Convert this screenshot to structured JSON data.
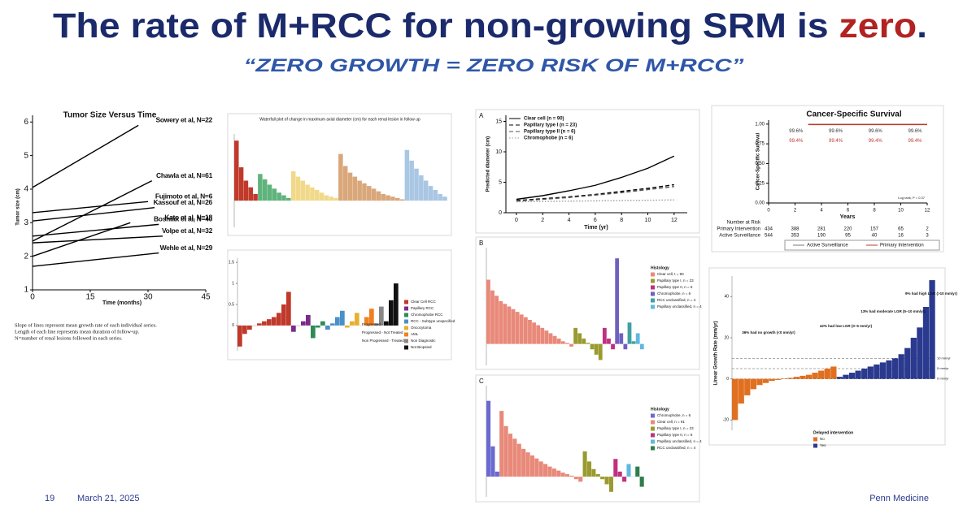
{
  "header": {
    "title": "The rate of M+RCC for non-growing SRM is ",
    "title_emphasis": "zero",
    "title_end": ".",
    "subtitle": "“ZERO GROWTH = ZERO RISK OF M+RCC”"
  },
  "footer": {
    "page": "19",
    "date": "March 21, 2025",
    "organization": "Penn Medicine"
  },
  "chart_data": [
    {
      "type": "line",
      "title": "Tumor Size Versus Time",
      "xlabel": "Time (months)",
      "ylabel": "Tumor size (cm)",
      "xlim": [
        0,
        45
      ],
      "xticks": [
        0,
        15,
        30,
        45
      ],
      "ylim": [
        1,
        6.2
      ],
      "yticks": [
        1,
        2,
        3,
        4,
        5,
        6
      ],
      "color": "#000000",
      "label_ends": true,
      "series": [
        {
          "name": "Sowery et al, N=22",
          "x": [
            0,
            27.5
          ],
          "values": [
            4.05,
            5.9
          ]
        },
        {
          "name": "Chawla et al, N=61",
          "x": [
            0,
            31
          ],
          "values": [
            2.45,
            4.25
          ]
        },
        {
          "name": "Fujimoto et al, N=6",
          "x": [
            0,
            30
          ],
          "values": [
            3.3,
            3.63
          ]
        },
        {
          "name": "Kassouf et al, N=26",
          "x": [
            0,
            31.7
          ],
          "values": [
            3.05,
            3.45
          ]
        },
        {
          "name": "Kato et al, N=18",
          "x": [
            0,
            25.4
          ],
          "values": [
            2.0,
            3.0
          ]
        },
        {
          "name": "Bosniak et al, N=40",
          "x": [
            0,
            32.8
          ],
          "values": [
            2.6,
            2.95
          ]
        },
        {
          "name": "Volpe et al, N=32",
          "x": [
            0,
            33.8
          ],
          "values": [
            2.4,
            2.6
          ]
        },
        {
          "name": "Wehle et al, N=29",
          "x": [
            0,
            32.8
          ],
          "values": [
            1.7,
            2.1
          ]
        }
      ],
      "notes": [
        "Slope of lines represent mean growth rate of each individual series.",
        "Length of each line represents mean duration of follow-up.",
        "N=number of renal lesions followed in each series."
      ]
    },
    {
      "type": "line",
      "panel": "A",
      "xlabel": "Time (yr)",
      "ylabel": "Predicted diameter (cm)",
      "legend": "upper left",
      "xlim": [
        -0.8,
        13
      ],
      "xticks": [
        0,
        2,
        4,
        6,
        8,
        10,
        12
      ],
      "ylim": [
        0,
        16
      ],
      "yticks": [
        0,
        5,
        10,
        15
      ],
      "series": [
        {
          "name": "Clear cell (n = 90)",
          "color": "#000000",
          "dash": "solid",
          "x": [
            0,
            2,
            4,
            6,
            8,
            10,
            12
          ],
          "values": [
            2.2,
            2.8,
            3.6,
            4.5,
            5.8,
            7.3,
            9.3
          ]
        },
        {
          "name": "Papillary type I (n = 23)",
          "color": "#000000",
          "dash": "dashed",
          "x": [
            0,
            2,
            4,
            6,
            8,
            10,
            12
          ],
          "values": [
            2.0,
            2.3,
            2.6,
            3.0,
            3.5,
            4.0,
            4.6
          ]
        },
        {
          "name": "Papillary type II (n = 6)",
          "color": "#555555",
          "dash": "dashed",
          "x": [
            0,
            2,
            4,
            6,
            8,
            10,
            12
          ],
          "values": [
            1.9,
            2.2,
            2.5,
            2.9,
            3.3,
            3.8,
            4.3
          ]
        },
        {
          "name": "Chromophobe (n = 6)",
          "color": "#999999",
          "dash": "dotted",
          "x": [
            0,
            2,
            4,
            6,
            8,
            10,
            12
          ],
          "values": [
            1.8,
            1.85,
            1.9,
            1.95,
            2.0,
            2.05,
            2.1
          ]
        }
      ]
    },
    {
      "type": "line",
      "title": "Cancer-Specific Survival",
      "xlabel": "Years",
      "ylabel": "Cancer-Specific Survival",
      "legend": "lower center",
      "xlim": [
        0,
        12
      ],
      "xticks": [
        0,
        2,
        4,
        6,
        8,
        10,
        12
      ],
      "ylim": [
        0,
        1.05
      ],
      "yticks": [
        {
          "value": 0,
          "label": "0.00"
        },
        {
          "value": 0.25,
          "label": "0.25"
        },
        {
          "value": 0.5,
          "label": "0.50"
        },
        {
          "value": 0.75,
          "label": "0.75"
        },
        {
          "value": 1,
          "label": "1.00"
        }
      ],
      "annotation": "Log rank, P = 0.37",
      "series": [
        {
          "name": "Active Surveillance",
          "color": "#777777",
          "label_color": "#333333",
          "x": [
            3,
            6,
            9,
            12
          ],
          "values": [
            0.996,
            0.996,
            0.996,
            0.996
          ],
          "value_labels": [
            "99.6%",
            "99.6%",
            "99.6%",
            "99.6%"
          ]
        },
        {
          "name": "Primary Intervention",
          "color": "#c0392b",
          "label_color": "#c0392b",
          "x": [
            3,
            6,
            9,
            12
          ],
          "values": [
            0.994,
            0.994,
            0.994,
            0.994
          ],
          "value_labels": [
            "99.4%",
            "99.4%",
            "99.4%",
            "99.4%"
          ]
        }
      ],
      "risk_table": {
        "title": "Number at Risk",
        "rows": [
          {
            "name": "Primary Intervention",
            "values": [
              "434",
              "388",
              "281",
              "220",
              "157",
              "65",
              "2"
            ]
          },
          {
            "name": "Active Surveillance",
            "values": [
              "544",
              "353",
              "190",
              "95",
              "40",
              "16",
              "3"
            ]
          }
        ]
      }
    },
    {
      "type": "waterfall",
      "title": "Waterfall plot of change in maximum axial diameter (cm) for each renal lesion in follow up",
      "ylim": [
        -2,
        5
      ],
      "series": [
        {
          "color": "#c0392b",
          "values": [
            4.5,
            2.5,
            1.5,
            1.0,
            0.5
          ]
        },
        {
          "color": "#5fb37c",
          "values": [
            2.0,
            1.6,
            1.2,
            0.9,
            0.6,
            0.4,
            0.2
          ]
        },
        {
          "color": "#f1d98a",
          "values": [
            2.2,
            1.8,
            1.5,
            1.2,
            1.0,
            0.8,
            0.6,
            0.4,
            0.3,
            0.2
          ]
        },
        {
          "color": "#d9a77a",
          "values": [
            3.5,
            2.6,
            2.1,
            1.8,
            1.5,
            1.3,
            1.1,
            0.9,
            0.7,
            0.5,
            0.4,
            0.3,
            0.2,
            0.1
          ]
        },
        {
          "color": "#a9c6e3",
          "values": [
            3.8,
            3.0,
            2.4,
            1.9,
            1.5,
            1.1,
            0.8,
            0.5,
            0.3
          ]
        }
      ]
    },
    {
      "type": "waterfall",
      "ylim": [
        -0.6,
        1.6
      ],
      "yticks": [
        0,
        0.5,
        1.0,
        1.5
      ],
      "series": [
        {
          "name": "Clear Cell RCC",
          "color": "#c0392b",
          "values": [
            -0.5,
            -0.2,
            -0.1,
            0.0,
            0.05,
            0.1,
            0.15,
            0.2,
            0.3,
            0.5,
            0.8
          ]
        },
        {
          "name": "Papillary RCC",
          "color": "#7b2a8a",
          "values": [
            -0.15,
            0.0,
            0.1,
            0.25
          ]
        },
        {
          "name": "Chromophobe RCC",
          "color": "#2e8b57",
          "values": [
            -0.3,
            -0.05,
            0.1
          ]
        },
        {
          "name": "RCC - Subtype unspecified",
          "color": "#4a90c8",
          "values": [
            -0.1,
            0.05,
            0.2,
            0.35
          ]
        },
        {
          "name": "Oncocytoma",
          "color": "#e8b030",
          "values": [
            -0.05,
            0.1,
            0.3
          ]
        },
        {
          "name": "AML",
          "color": "#f08020",
          "values": [
            0.0,
            0.2,
            0.4
          ]
        },
        {
          "name": "Non Diagnostic",
          "color": "#888888",
          "values": [
            0.05,
            0.45
          ]
        },
        {
          "name": "Not Biopsied",
          "color": "#111111",
          "values": [
            0.1,
            0.6,
            1.0
          ]
        }
      ],
      "markers_legend": [
        "Progressed - Treated",
        "Progressed - Not Treated",
        "Non Progressed - Treated"
      ]
    },
    {
      "type": "waterfall",
      "panel": "B",
      "legend_title": "Histology",
      "ylim": [
        -0.4,
        1.8
      ],
      "series": [
        {
          "name": "Clear cell, t = 90",
          "color": "#e8897a",
          "values": [
            1.2,
            1.0,
            0.9,
            0.8,
            0.75,
            0.7,
            0.65,
            0.6,
            0.55,
            0.5,
            0.45,
            0.4,
            0.35,
            0.3,
            0.25,
            0.2,
            0.15,
            0.1,
            0.05,
            0.02,
            -0.05
          ]
        },
        {
          "name": "Papillary type I, n = 23",
          "color": "#9a9a30",
          "values": [
            0.3,
            0.2,
            0.1,
            0.02,
            -0.1,
            -0.2,
            -0.3
          ]
        },
        {
          "name": "Papillary type II, n = 6",
          "color": "#c03080",
          "values": [
            0.3,
            0.1,
            -0.1
          ]
        },
        {
          "name": "Chromophobe, n = 6",
          "color": "#7060c0",
          "values": [
            1.6,
            0.2,
            -0.1
          ]
        },
        {
          "name": "RCC unclassified, n = 4",
          "color": "#40a0a0",
          "values": [
            0.4,
            0.05
          ]
        },
        {
          "name": "Papillary unclassified, n = 4",
          "color": "#60b8e0",
          "values": [
            0.2,
            -0.1
          ]
        }
      ]
    },
    {
      "type": "waterfall",
      "panel": "C",
      "legend_title": "Histology",
      "ylim": [
        -0.4,
        1.8
      ],
      "series": [
        {
          "name": "Chromophobe, n = 6",
          "color": "#6a6ad0",
          "values": [
            1.5,
            0.6,
            0.1
          ]
        },
        {
          "name": "Clear cell, n = 91",
          "color": "#e8897a",
          "values": [
            1.3,
            1.0,
            0.85,
            0.75,
            0.65,
            0.55,
            0.48,
            0.42,
            0.36,
            0.3,
            0.25,
            0.2,
            0.16,
            0.12,
            0.08,
            0.05,
            0.02,
            -0.05,
            -0.1
          ]
        },
        {
          "name": "Papillary type I, n = 23",
          "color": "#9a9a30",
          "values": [
            0.5,
            0.3,
            0.15,
            0.05,
            -0.05,
            -0.15,
            -0.3
          ]
        },
        {
          "name": "Papillary type II, n = 6",
          "color": "#c03080",
          "values": [
            0.35,
            0.1,
            -0.1
          ]
        },
        {
          "name": "Papillary unclassified, n = 4",
          "color": "#60b8e0",
          "values": [
            0.25,
            0.0
          ]
        },
        {
          "name": "RCC unclassified, n = 4",
          "color": "#2e7d4a",
          "values": [
            0.2,
            -0.2
          ]
        }
      ]
    },
    {
      "type": "waterfall",
      "ylabel": "Linear Growth Rate (mm/yr)",
      "legend_title": "Delayed intervention",
      "ylim": [
        -25,
        50
      ],
      "yticks": [
        -20,
        0,
        20,
        40
      ],
      "refs": [
        {
          "value": 10,
          "label": "10 mm/yr"
        },
        {
          "value": 5,
          "label": "5 mm/yr"
        },
        {
          "value": 0,
          "label": "0 mm/yr"
        }
      ],
      "annotations": [
        "36% had no growth (<0 mm/yr)",
        "42% had low LGR (0–5 mm/yr)",
        "13% had moderate LGR (5–10 mm/yr)",
        "9% had high LGR (>10 mm/yr)"
      ],
      "series": [
        {
          "name": "No",
          "color": "#e07020",
          "values": [
            -20,
            -12,
            -8,
            -5,
            -3,
            -2,
            -1,
            -0.5,
            0.2,
            0.5,
            1,
            1.5,
            2,
            3,
            4,
            5,
            6
          ]
        },
        {
          "name": "Yes",
          "color": "#2b3a8f",
          "values": [
            1,
            2,
            3,
            4,
            5,
            6,
            7,
            8,
            9,
            10,
            12,
            15,
            20,
            25,
            35,
            48
          ]
        }
      ]
    }
  ]
}
